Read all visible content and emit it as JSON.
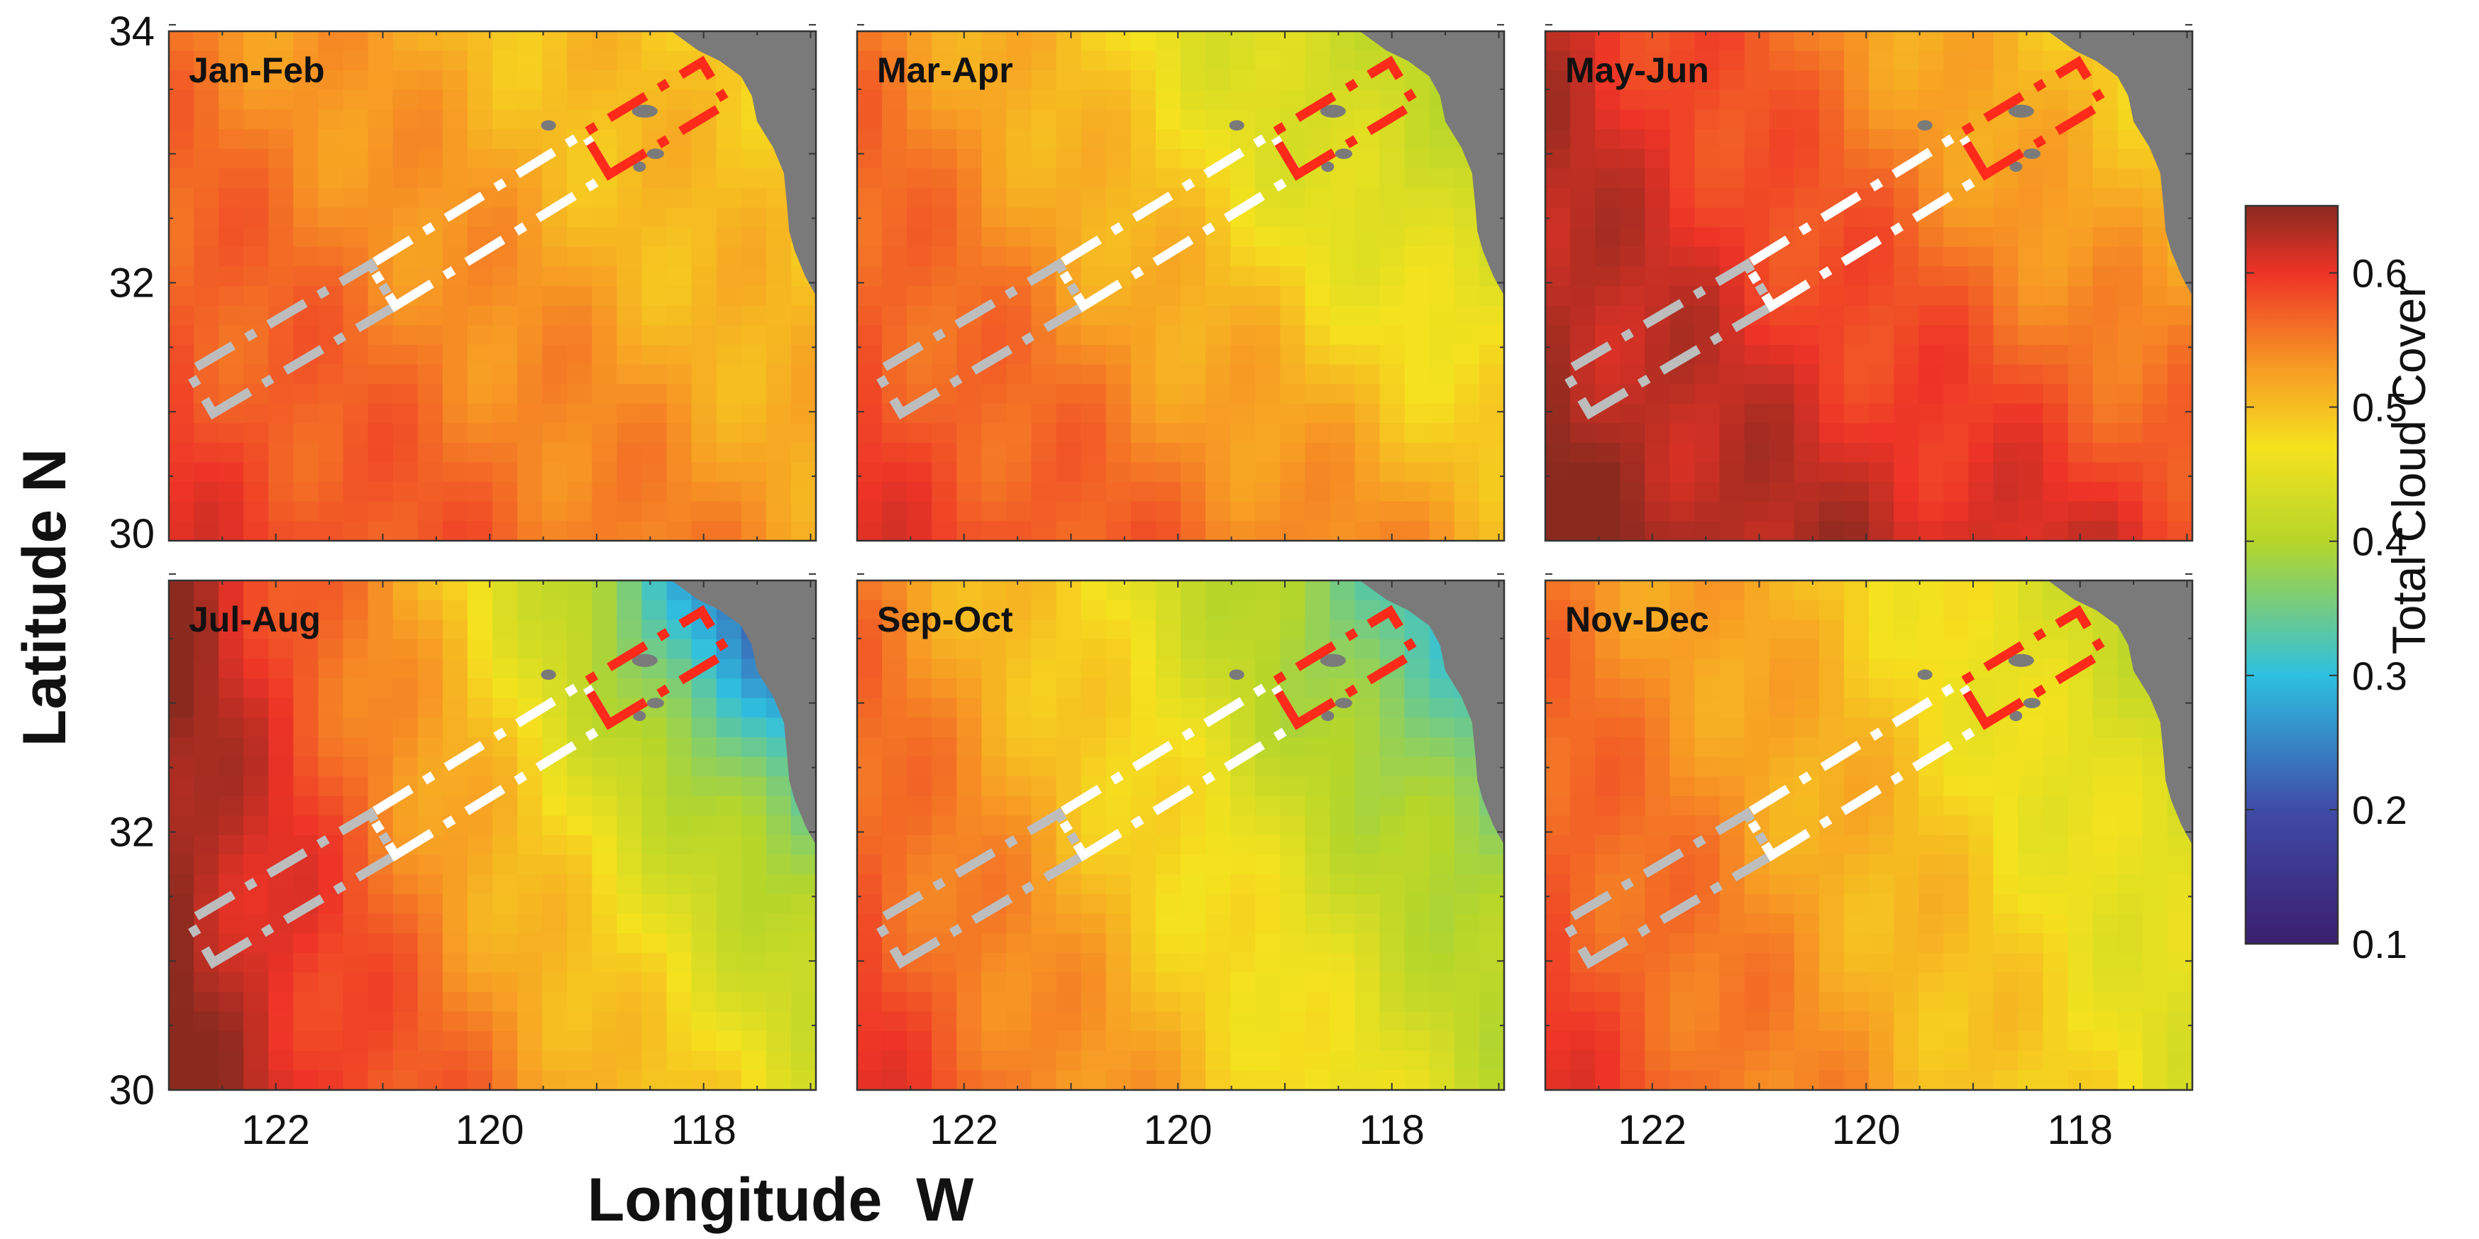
{
  "chart_data": {
    "type": "heatmap",
    "variable": "Total Cloud Cover",
    "xlabel": "Longitude  W",
    "ylabel": "Latitude  N",
    "x_ticks": [
      "122",
      "120",
      "118"
    ],
    "y_ticks_top": [
      "34",
      "32",
      "30"
    ],
    "y_ticks_bottom": [
      "32",
      "30"
    ],
    "colorbar": {
      "label": "Total Cloud Cover",
      "range": [
        0.1,
        0.65
      ],
      "ticks": [
        "0.1",
        "0.2",
        "0.3",
        "0.4",
        "0.5",
        "0.6"
      ],
      "tick_values": [
        0.1,
        0.2,
        0.3,
        0.4,
        0.5,
        0.6
      ],
      "stops": [
        {
          "v": 0.1,
          "c": "#3b1f6e"
        },
        {
          "v": 0.2,
          "c": "#3f4ba8"
        },
        {
          "v": 0.3,
          "c": "#2ec0e0"
        },
        {
          "v": 0.4,
          "c": "#b6d62a"
        },
        {
          "v": 0.47,
          "c": "#f5e21e"
        },
        {
          "v": 0.53,
          "c": "#f79a24"
        },
        {
          "v": 0.6,
          "c": "#ee3327"
        },
        {
          "v": 0.65,
          "c": "#8a2a1f"
        }
      ]
    },
    "panels": [
      {
        "title": "Jan-Feb",
        "sw": 0.6,
        "nw": 0.55,
        "ne": 0.46,
        "se": 0.53,
        "coastal": 0.5,
        "band": 0.15
      },
      {
        "title": "Mar-Apr",
        "sw": 0.6,
        "nw": 0.55,
        "ne": 0.38,
        "se": 0.52,
        "coastal": 0.42,
        "band": 0.15
      },
      {
        "title": "May-Jun",
        "sw": 0.65,
        "nw": 0.62,
        "ne": 0.45,
        "se": 0.6,
        "coastal": 0.5,
        "band": 0.12
      },
      {
        "title": "Jul-Aug",
        "sw": 0.65,
        "nw": 0.65,
        "ne": 0.28,
        "se": 0.45,
        "coastal": 0.22,
        "band": 0.1
      },
      {
        "title": "Sep-Oct",
        "sw": 0.6,
        "nw": 0.55,
        "ne": 0.33,
        "se": 0.42,
        "coastal": 0.32,
        "band": 0.12
      },
      {
        "title": "Nov-Dec",
        "sw": 0.6,
        "nw": 0.55,
        "ne": 0.43,
        "se": 0.45,
        "coastal": 0.42,
        "band": 0.12
      }
    ],
    "transect_colors": {
      "offshore": "#bdbdbd",
      "middle": "#ffffff",
      "nearshore": "#ff2a1a"
    },
    "land_color": "#7a7a7a"
  }
}
